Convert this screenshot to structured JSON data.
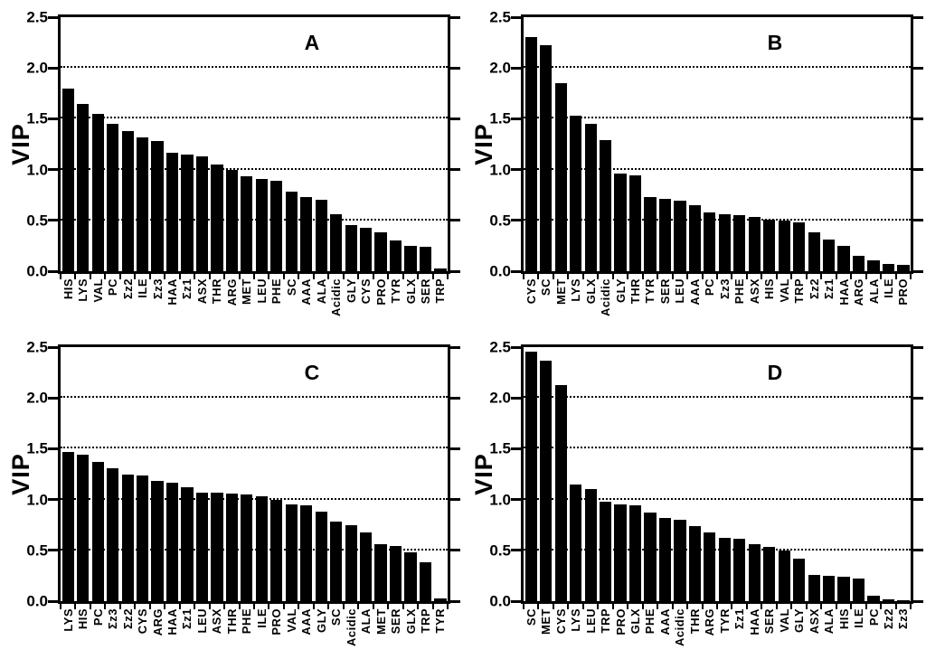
{
  "colors": {
    "bar": "#000000",
    "background": "#ffffff",
    "axis": "#000000"
  },
  "chart_data": [
    {
      "type": "bar",
      "title": "A",
      "ylabel": "VIP",
      "ylim": [
        0,
        2.5
      ],
      "yticks": [
        "0.0",
        "0.5",
        "1.0",
        "1.5",
        "2.0",
        "2.5"
      ],
      "gridlines": [
        0.5,
        1.0,
        1.5,
        2.0
      ],
      "grid_style": "dotted",
      "legend_position": "none",
      "categories": [
        "HIS",
        "LYS",
        "VAL",
        "PC",
        "Σz2",
        "ILE",
        "Σz3",
        "HAA",
        "Σz1",
        "ASX",
        "THR",
        "ARG",
        "MET",
        "LEU",
        "PHE",
        "SC",
        "AAA",
        "ALA",
        "Acidic",
        "GLY",
        "CYS",
        "PRO",
        "TYR",
        "GLX",
        "SER",
        "TRP"
      ],
      "values": [
        1.8,
        1.65,
        1.55,
        1.45,
        1.38,
        1.32,
        1.28,
        1.17,
        1.15,
        1.13,
        1.05,
        1.0,
        0.93,
        0.91,
        0.89,
        0.78,
        0.73,
        0.7,
        0.56,
        0.45,
        0.43,
        0.38,
        0.3,
        0.25,
        0.24,
        0.03
      ]
    },
    {
      "type": "bar",
      "title": "B",
      "ylabel": "VIP",
      "ylim": [
        0,
        2.5
      ],
      "yticks": [
        "0.0",
        "0.5",
        "1.0",
        "1.5",
        "2.0",
        "2.5"
      ],
      "gridlines": [
        0.5,
        1.0,
        1.5,
        2.0
      ],
      "grid_style": "dotted",
      "legend_position": "none",
      "categories": [
        "CYS",
        "SC",
        "MET",
        "LYS",
        "GLX",
        "Acidic",
        "GLY",
        "THR",
        "TYR",
        "SER",
        "LEU",
        "AAA",
        "PC",
        "Σz3",
        "PHE",
        "ASX",
        "HIS",
        "VAL",
        "TRP",
        "Σz2",
        "Σz1",
        "HAA",
        "ARG",
        "ALA",
        "ILE",
        "PRO"
      ],
      "values": [
        2.3,
        2.22,
        1.85,
        1.53,
        1.45,
        1.29,
        0.96,
        0.94,
        0.73,
        0.71,
        0.69,
        0.65,
        0.58,
        0.56,
        0.55,
        0.53,
        0.51,
        0.5,
        0.48,
        0.38,
        0.31,
        0.25,
        0.15,
        0.11,
        0.07,
        0.06
      ]
    },
    {
      "type": "bar",
      "title": "C",
      "ylabel": "VIP",
      "ylim": [
        0,
        2.5
      ],
      "yticks": [
        "0.0",
        "0.5",
        "1.0",
        "1.5",
        "2.0",
        "2.5"
      ],
      "gridlines": [
        0.5,
        1.0,
        1.5,
        2.0
      ],
      "grid_style": "dotted",
      "legend_position": "none",
      "categories": [
        "LYS",
        "HIS",
        "PC",
        "Σz3",
        "Σz2",
        "CYS",
        "ARG",
        "HAA",
        "Σz1",
        "LEU",
        "ASX",
        "THR",
        "PHE",
        "ILE",
        "PRO",
        "VAL",
        "AAA",
        "GLY",
        "SC",
        "Acidic",
        "ALA",
        "MET",
        "SER",
        "GLX",
        "TRP",
        "TYR"
      ],
      "values": [
        1.47,
        1.44,
        1.37,
        1.31,
        1.25,
        1.24,
        1.18,
        1.17,
        1.12,
        1.07,
        1.07,
        1.06,
        1.05,
        1.03,
        1.0,
        0.95,
        0.94,
        0.88,
        0.78,
        0.75,
        0.68,
        0.56,
        0.54,
        0.48,
        0.38,
        0.03
      ]
    },
    {
      "type": "bar",
      "title": "D",
      "ylabel": "VIP",
      "ylim": [
        0,
        2.5
      ],
      "yticks": [
        "0.0",
        "0.5",
        "1.0",
        "1.5",
        "2.0",
        "2.5"
      ],
      "gridlines": [
        0.5,
        1.0,
        1.5,
        2.0
      ],
      "grid_style": "dotted",
      "legend_position": "none",
      "categories": [
        "SC",
        "MET",
        "CYS",
        "LYS",
        "LEU",
        "TRP",
        "PRO",
        "GLX",
        "PHE",
        "AAA",
        "Acidic",
        "THR",
        "ARG",
        "TYR",
        "Σz1",
        "HAA",
        "SER",
        "VAL",
        "GLY",
        "ASX",
        "ALA",
        "HIS",
        "ILE",
        "PC",
        "Σz2",
        "Σz3"
      ],
      "values": [
        2.46,
        2.37,
        2.13,
        1.15,
        1.1,
        0.98,
        0.95,
        0.94,
        0.87,
        0.82,
        0.8,
        0.74,
        0.68,
        0.62,
        0.61,
        0.56,
        0.53,
        0.5,
        0.42,
        0.26,
        0.25,
        0.24,
        0.22,
        0.05,
        0.02,
        0.01
      ]
    }
  ]
}
